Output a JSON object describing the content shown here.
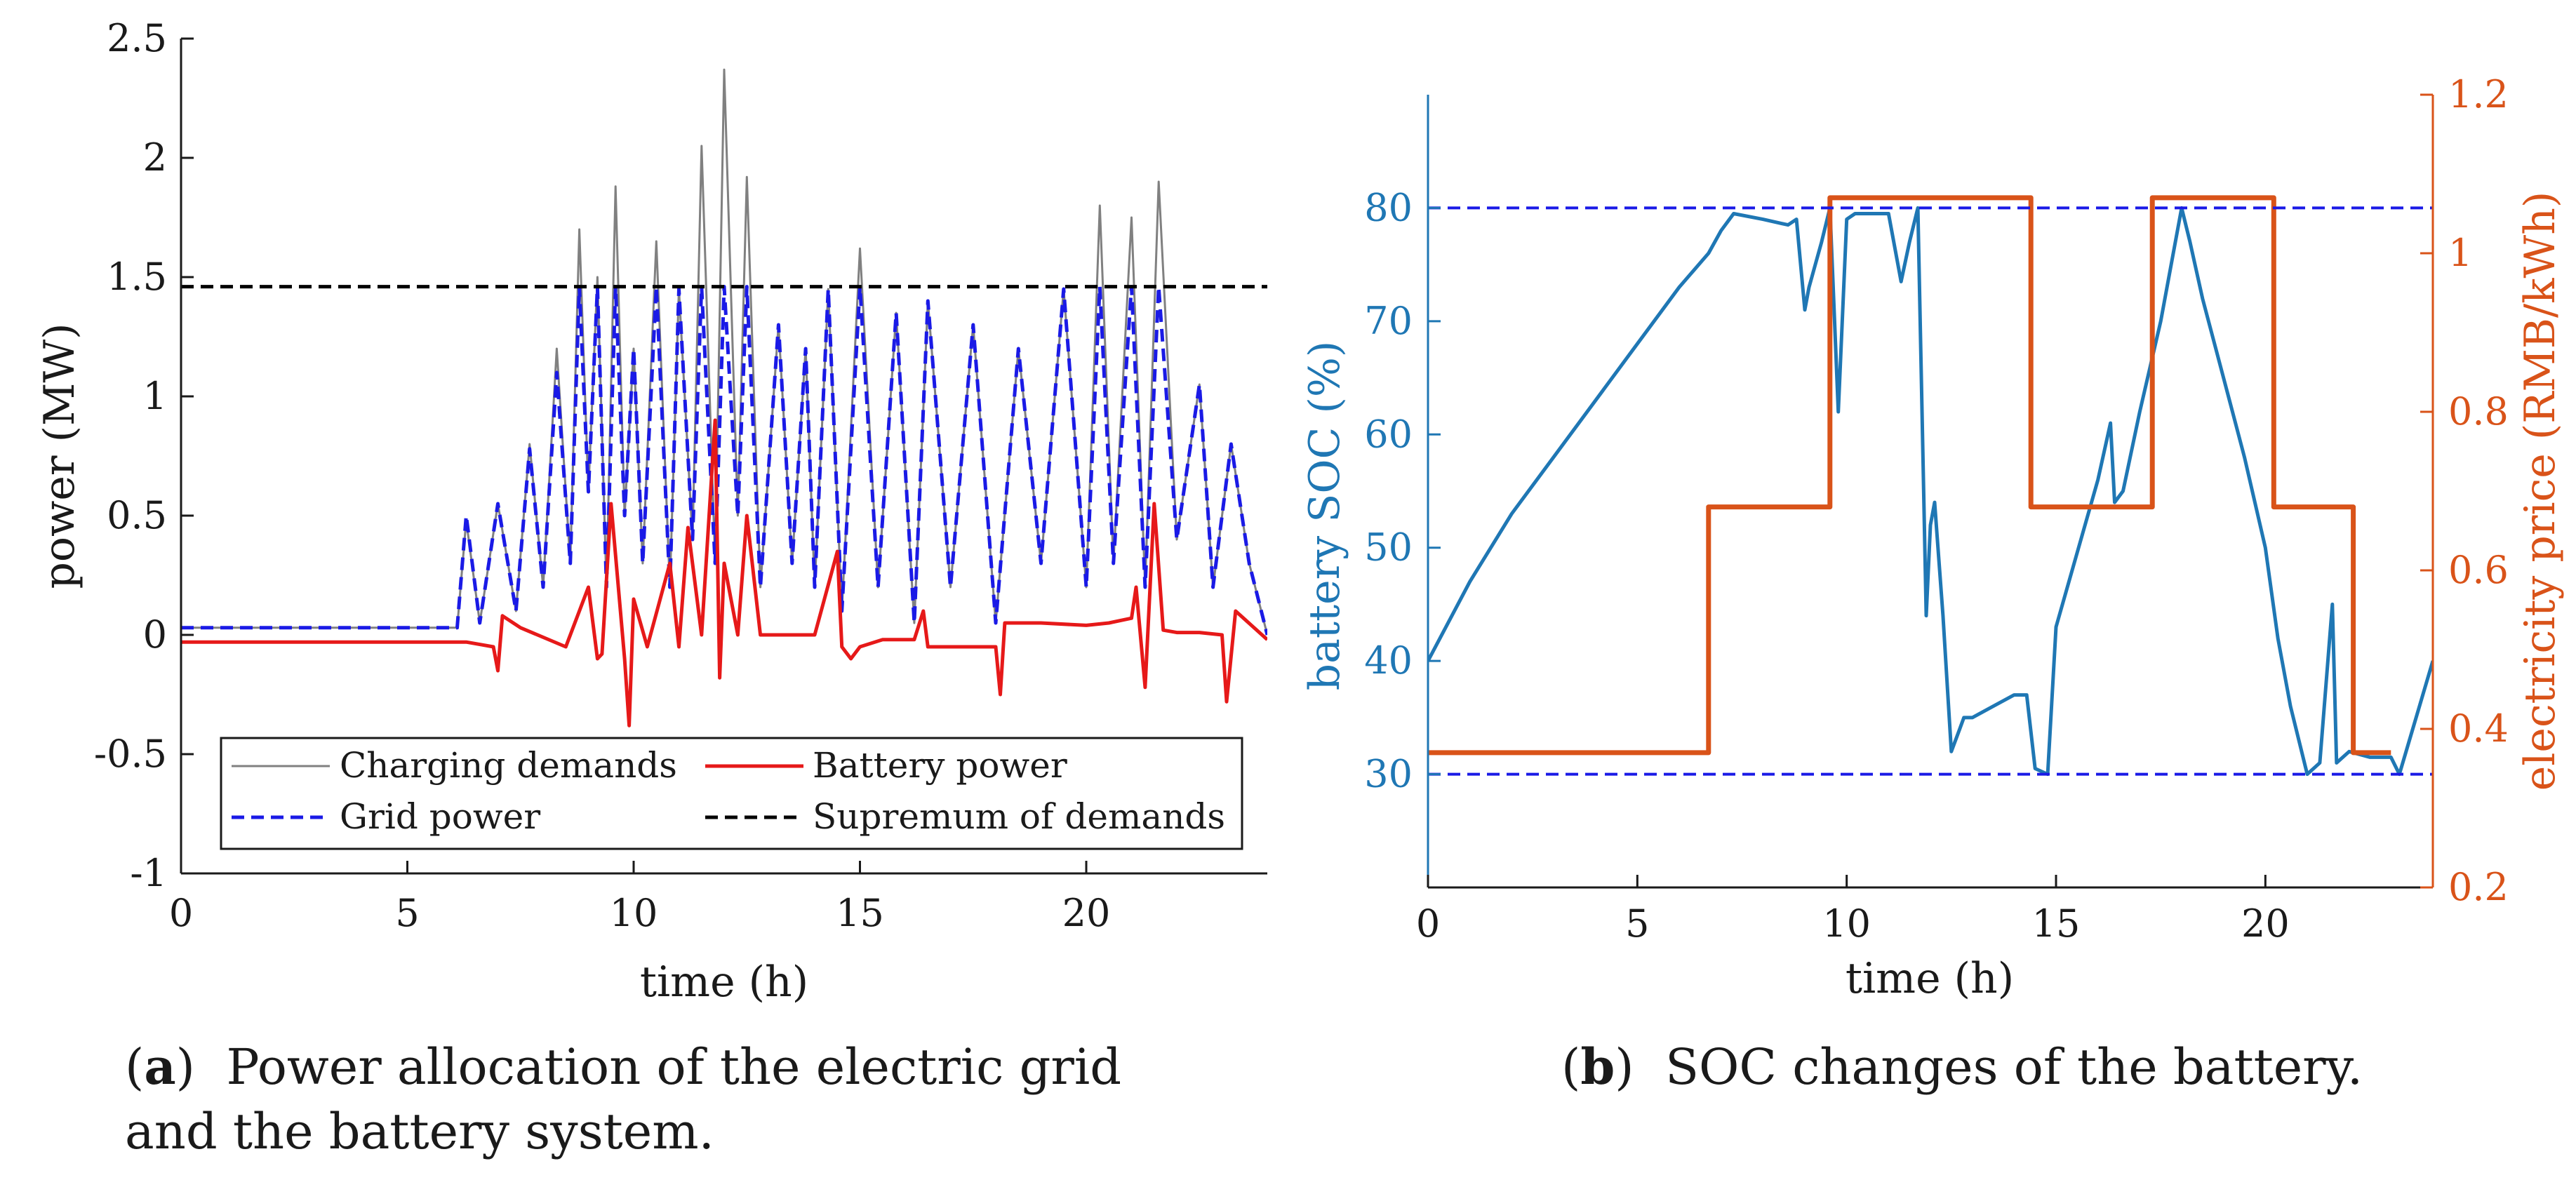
{
  "captions": {
    "a_label": "a",
    "a_text": "Power allocation of the electric grid and the battery system.",
    "b_label": "b",
    "b_text": "SOC changes of the battery."
  },
  "chart_data": [
    {
      "type": "line",
      "panel": "a",
      "xlabel": "time (h)",
      "ylabel": "power (MW)",
      "xlim": [
        0,
        24
      ],
      "ylim": [
        -1,
        2.5
      ],
      "xticks": [
        "0",
        "5",
        "10",
        "15",
        "20"
      ],
      "xtick_values": [
        0,
        5,
        10,
        15,
        20
      ],
      "yticks": [
        "-1",
        "-0.5",
        "0",
        "0.5",
        "1",
        "1.5",
        "2",
        "2.5"
      ],
      "ytick_values": [
        -1,
        -0.5,
        0,
        0.5,
        1,
        1.5,
        2,
        2.5
      ],
      "legend": {
        "placement": "bottom",
        "entries": [
          "Charging demands",
          "Battery power",
          "Grid power",
          "Supremum of demands"
        ]
      },
      "series": [
        {
          "name": "Charging demands",
          "color": "#808080",
          "style": "solid",
          "x": [
            0,
            6.1,
            6.3,
            6.6,
            7.0,
            7.4,
            7.7,
            8.0,
            8.3,
            8.6,
            8.8,
            9.0,
            9.2,
            9.4,
            9.6,
            9.8,
            10.0,
            10.2,
            10.5,
            10.8,
            11.0,
            11.3,
            11.5,
            11.8,
            12.0,
            12.3,
            12.5,
            12.8,
            13.2,
            13.5,
            13.8,
            14.0,
            14.3,
            14.6,
            15.0,
            15.4,
            15.8,
            16.2,
            16.5,
            17.0,
            17.5,
            18.0,
            18.5,
            19.0,
            19.5,
            20.0,
            20.3,
            20.6,
            21.0,
            21.3,
            21.6,
            22.0,
            22.5,
            22.8,
            23.2,
            23.6,
            24.0
          ],
          "values": [
            0.03,
            0.03,
            0.48,
            0.05,
            0.55,
            0.1,
            0.8,
            0.2,
            1.2,
            0.3,
            1.7,
            0.6,
            1.5,
            0.2,
            1.88,
            0.5,
            1.2,
            0.3,
            1.65,
            0.2,
            1.45,
            0.4,
            2.05,
            0.3,
            2.37,
            0.5,
            1.92,
            0.2,
            1.3,
            0.3,
            1.2,
            0.2,
            1.45,
            0.1,
            1.62,
            0.2,
            1.35,
            0.05,
            1.4,
            0.2,
            1.3,
            0.05,
            1.2,
            0.3,
            1.45,
            0.2,
            1.8,
            0.3,
            1.75,
            0.2,
            1.9,
            0.4,
            1.05,
            0.2,
            0.8,
            0.3,
            0.0
          ]
        },
        {
          "name": "Grid power",
          "color": "#1a1ae6",
          "style": "dashed",
          "x": [
            0,
            6.1,
            6.3,
            6.6,
            7.0,
            7.4,
            7.7,
            8.0,
            8.3,
            8.6,
            8.8,
            9.0,
            9.2,
            9.4,
            9.6,
            9.8,
            10.0,
            10.2,
            10.5,
            10.8,
            11.0,
            11.3,
            11.5,
            11.8,
            12.0,
            12.3,
            12.5,
            12.8,
            13.2,
            13.5,
            13.8,
            14.0,
            14.3,
            14.6,
            15.0,
            15.4,
            15.8,
            16.2,
            16.5,
            17.0,
            17.5,
            18.0,
            18.5,
            19.0,
            19.5,
            20.0,
            20.3,
            20.6,
            21.0,
            21.3,
            21.6,
            22.0,
            22.5,
            22.8,
            23.2,
            23.6,
            24.0
          ],
          "values": [
            0.03,
            0.03,
            0.5,
            0.05,
            0.55,
            0.1,
            0.78,
            0.2,
            1.1,
            0.3,
            1.46,
            0.6,
            1.46,
            0.2,
            1.46,
            0.5,
            1.2,
            0.3,
            1.46,
            0.2,
            1.45,
            0.4,
            1.46,
            0.3,
            1.46,
            0.5,
            1.46,
            0.2,
            1.3,
            0.3,
            1.2,
            0.2,
            1.45,
            0.1,
            1.46,
            0.2,
            1.35,
            0.05,
            1.4,
            0.2,
            1.3,
            0.05,
            1.2,
            0.3,
            1.45,
            0.2,
            1.46,
            0.3,
            1.46,
            0.2,
            1.46,
            0.4,
            1.05,
            0.2,
            0.8,
            0.3,
            0.0
          ]
        },
        {
          "name": "Battery power",
          "color": "#e61919",
          "style": "solid",
          "x": [
            0,
            6.0,
            6.3,
            6.6,
            6.9,
            7.0,
            7.1,
            7.5,
            8.5,
            9.0,
            9.2,
            9.3,
            9.5,
            9.8,
            9.9,
            10.0,
            10.3,
            10.8,
            11.0,
            11.2,
            11.5,
            11.8,
            11.9,
            12.0,
            12.3,
            12.5,
            12.8,
            13.2,
            14.0,
            14.5,
            14.6,
            14.8,
            15.0,
            15.5,
            16.2,
            16.4,
            16.5,
            17.0,
            18.0,
            18.1,
            18.2,
            19.0,
            20.0,
            20.5,
            21.0,
            21.1,
            21.3,
            21.5,
            21.7,
            22.0,
            22.5,
            23.0,
            23.1,
            23.3,
            24.0
          ],
          "values": [
            -0.03,
            -0.03,
            -0.03,
            -0.04,
            -0.05,
            -0.15,
            0.08,
            0.03,
            -0.05,
            0.2,
            -0.1,
            -0.08,
            0.55,
            -0.1,
            -0.38,
            0.15,
            -0.05,
            0.3,
            -0.05,
            0.45,
            0.0,
            0.9,
            -0.18,
            0.3,
            0.0,
            0.5,
            0.0,
            0.0,
            0.0,
            0.35,
            -0.05,
            -0.1,
            -0.05,
            -0.02,
            -0.02,
            0.1,
            -0.05,
            -0.05,
            -0.05,
            -0.25,
            0.05,
            0.05,
            0.04,
            0.05,
            0.07,
            0.2,
            -0.22,
            0.55,
            0.02,
            0.01,
            0.01,
            0.0,
            -0.28,
            0.1,
            -0.02
          ]
        },
        {
          "name": "Supremum of demands",
          "color": "#000000",
          "style": "dashed",
          "x": [
            0,
            24
          ],
          "values": [
            1.46,
            1.46
          ]
        }
      ]
    },
    {
      "type": "line",
      "panel": "b",
      "xlabel": "time (h)",
      "ylabel_left": "battery SOC (%)",
      "ylabel_right": "electricity price (RMB/kWh)",
      "xlim": [
        0,
        24
      ],
      "ylim_left": [
        20,
        90
      ],
      "ylim_right": [
        0.2,
        1.2
      ],
      "xticks": [
        "0",
        "5",
        "10",
        "15",
        "20"
      ],
      "xtick_values": [
        0,
        5,
        10,
        15,
        20
      ],
      "yticks_left": [
        "30",
        "40",
        "50",
        "60",
        "70",
        "80"
      ],
      "ytick_values_left": [
        30,
        40,
        50,
        60,
        70,
        80
      ],
      "yticks_right": [
        "0.2",
        "0.4",
        "0.6",
        "0.8",
        "1",
        "1.2"
      ],
      "ytick_values_right": [
        0.2,
        0.4,
        0.6,
        0.8,
        1.0,
        1.2
      ],
      "series": [
        {
          "name": "battery SOC",
          "axis": "left",
          "color": "#1f77b4",
          "style": "solid",
          "x": [
            0,
            1,
            2,
            3,
            4,
            5,
            6,
            6.7,
            7.0,
            7.3,
            8.0,
            8.6,
            8.8,
            9.0,
            9.1,
            9.4,
            9.6,
            9.8,
            10.0,
            10.2,
            10.5,
            11.0,
            11.3,
            11.5,
            11.7,
            11.9,
            12.0,
            12.1,
            12.3,
            12.5,
            12.7,
            12.8,
            13.0,
            13.5,
            14.0,
            14.3,
            14.5,
            14.8,
            15.0,
            16.0,
            16.3,
            16.4,
            16.6,
            17.0,
            17.5,
            18.0,
            18.2,
            18.5,
            19.0,
            19.5,
            20.0,
            20.3,
            20.6,
            21.0,
            21.3,
            21.6,
            21.7,
            22.0,
            22.5,
            23.0,
            23.2,
            24.0
          ],
          "values": [
            40,
            47,
            53,
            58,
            63,
            68,
            73,
            76,
            78,
            79.5,
            79,
            78.5,
            79,
            71,
            73,
            77,
            80,
            62,
            79,
            79.5,
            79.5,
            79.5,
            73.5,
            77,
            80,
            44,
            52,
            54,
            44,
            32,
            34,
            35,
            35,
            36,
            37,
            37,
            30.5,
            30,
            43,
            56,
            61,
            54,
            55,
            62,
            70,
            80,
            77,
            72,
            65,
            58,
            50,
            42,
            36,
            30,
            31,
            45,
            31,
            32,
            31.5,
            31.5,
            30,
            40
          ]
        },
        {
          "name": "electricity price",
          "axis": "right",
          "color": "#d95319",
          "style": "step",
          "x": [
            0,
            6.7,
            6.7,
            9.6,
            9.6,
            14.4,
            14.4,
            17.3,
            17.3,
            20.2,
            20.2,
            22.1,
            22.1,
            23.0
          ],
          "values": [
            0.37,
            0.37,
            0.68,
            0.68,
            1.07,
            1.07,
            0.68,
            0.68,
            1.07,
            1.07,
            0.68,
            0.68,
            0.37,
            0.37
          ]
        },
        {
          "name": "SOC upper bound",
          "axis": "left",
          "color": "#1a1ae6",
          "style": "dashed",
          "x": [
            0,
            24
          ],
          "values": [
            80,
            80
          ]
        },
        {
          "name": "SOC lower bound",
          "axis": "left",
          "color": "#1a1ae6",
          "style": "dashed",
          "x": [
            0,
            24
          ],
          "values": [
            30,
            30
          ]
        }
      ]
    }
  ]
}
